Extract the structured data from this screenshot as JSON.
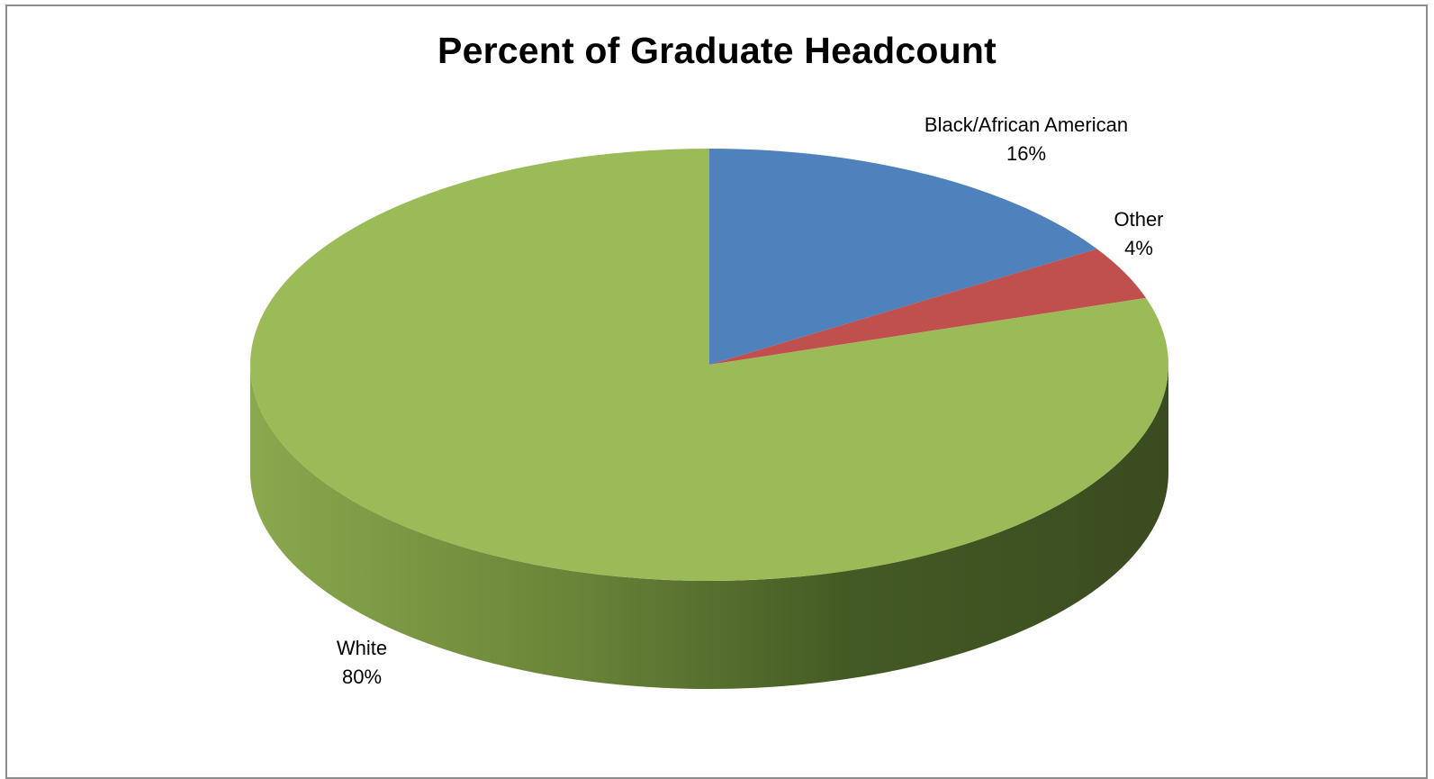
{
  "chart_data": {
    "type": "pie",
    "title": "Percent of Graduate Headcount",
    "categories": [
      "Black/African American",
      "Other",
      "White"
    ],
    "values": [
      16,
      4,
      80
    ],
    "value_labels": [
      "16%",
      "4%",
      "80%"
    ],
    "colors": [
      "#4f81bd",
      "#c0504d",
      "#9bbb59"
    ],
    "style": "3d"
  }
}
